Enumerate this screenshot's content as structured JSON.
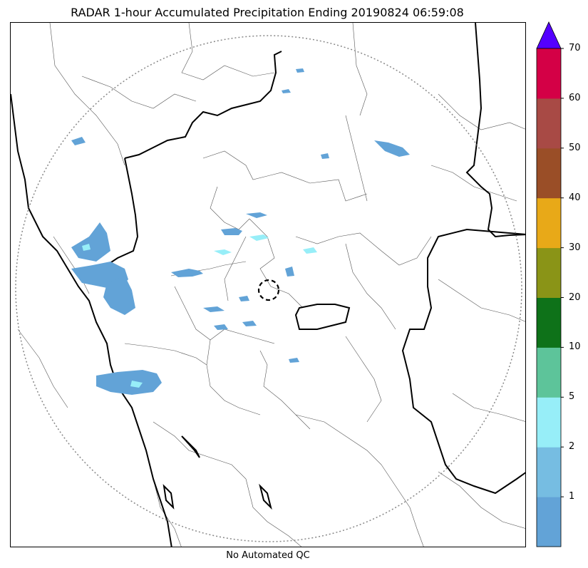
{
  "title": "RADAR 1-hour Accumulated Precipitation Ending 20190824 06:59:08",
  "footer": "No Automated QC",
  "colorbar": {
    "ticks": [
      "1",
      "2",
      "5",
      "10",
      "20",
      "30",
      "40",
      "50",
      "60",
      "70"
    ],
    "colors": [
      "#62a3d7",
      "#76bde2",
      "#97eef8",
      "#5dc49a",
      "#0e7219",
      "#8a9417",
      "#e8a918",
      "#9a4e27",
      "#a84a45",
      "#d40046"
    ],
    "extend_color": "#5400ff"
  },
  "map": {
    "radar_range_ring": "dotted-gray-circle",
    "radar_site_marker": "dashed-black-circle",
    "echo_color_light": "#62a3d7",
    "echo_color_medium": "#97eef8",
    "border_color": "#000000"
  }
}
